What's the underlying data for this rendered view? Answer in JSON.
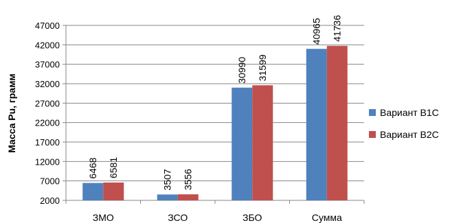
{
  "chart_data": {
    "type": "bar",
    "categories": [
      "ЗМО",
      "ЗСО",
      "ЗБО",
      "Сумма"
    ],
    "series": [
      {
        "name": "Вариант В1С",
        "values": [
          6468,
          3507,
          30990,
          40965
        ],
        "color": "#4F81BD"
      },
      {
        "name": "Вариант В2С",
        "values": [
          6581,
          3556,
          31599,
          41736
        ],
        "color": "#C0504D"
      }
    ],
    "data_labels": [
      [
        "6468",
        "3507",
        "30990",
        "40965"
      ],
      [
        "6581",
        "3556",
        "31599",
        "41736"
      ]
    ],
    "ylabel": "Масса Pu, грамм",
    "xlabel": "",
    "ylim": [
      2000,
      47000
    ],
    "yticks": [
      2000,
      7000,
      12000,
      17000,
      22000,
      27000,
      32000,
      37000,
      42000,
      47000
    ],
    "ytick_labels": [
      "2000",
      "7000",
      "12000",
      "17000",
      "22000",
      "27000",
      "32000",
      "37000",
      "42000",
      "47000"
    ],
    "grid": "horizontal",
    "legend_position": "right"
  }
}
